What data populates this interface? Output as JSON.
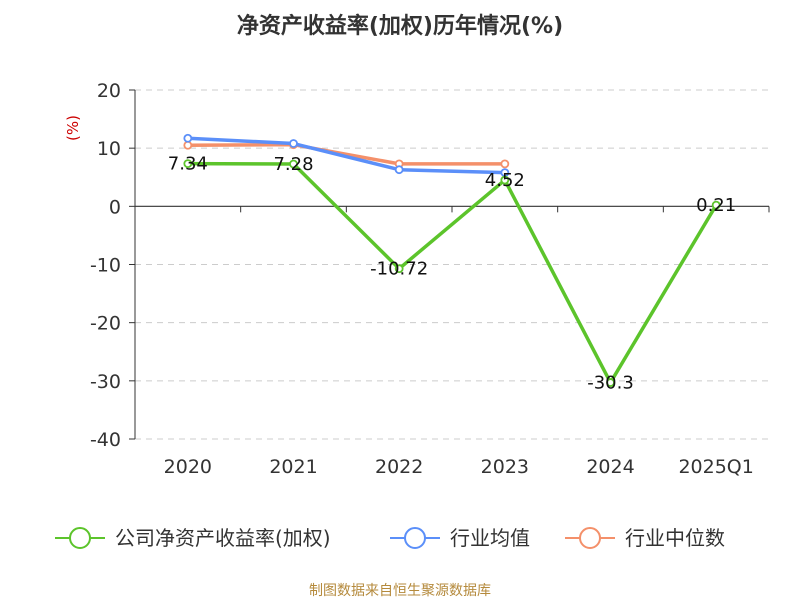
{
  "chart_data": {
    "type": "line",
    "title": "净资产收益率(加权)历年情况(%)",
    "ylabel": "(%)",
    "categories": [
      "2020",
      "2021",
      "2022",
      "2023",
      "2024",
      "2025Q1"
    ],
    "ylim": [
      -40,
      20
    ],
    "yticks": [
      20,
      10,
      0,
      -10,
      -20,
      -30,
      -40
    ],
    "grid": true,
    "legend_position": "bottom",
    "series": [
      {
        "name": "公司净资产收益率(加权)",
        "color": "#5cc42b",
        "values": [
          7.34,
          7.28,
          -10.72,
          4.52,
          -30.3,
          0.21
        ],
        "labels": [
          "7.34",
          "7.28",
          "-10.72",
          "4.52",
          "-30.3",
          "0.21"
        ]
      },
      {
        "name": "行业均值",
        "color": "#5b8ff9",
        "values": [
          11.7,
          10.8,
          6.3,
          5.8,
          null,
          null
        ]
      },
      {
        "name": "行业中位数",
        "color": "#f4906a",
        "values": [
          10.5,
          10.6,
          7.3,
          7.3,
          null,
          null
        ]
      }
    ]
  },
  "source": "制图数据来自恒生聚源数据库"
}
